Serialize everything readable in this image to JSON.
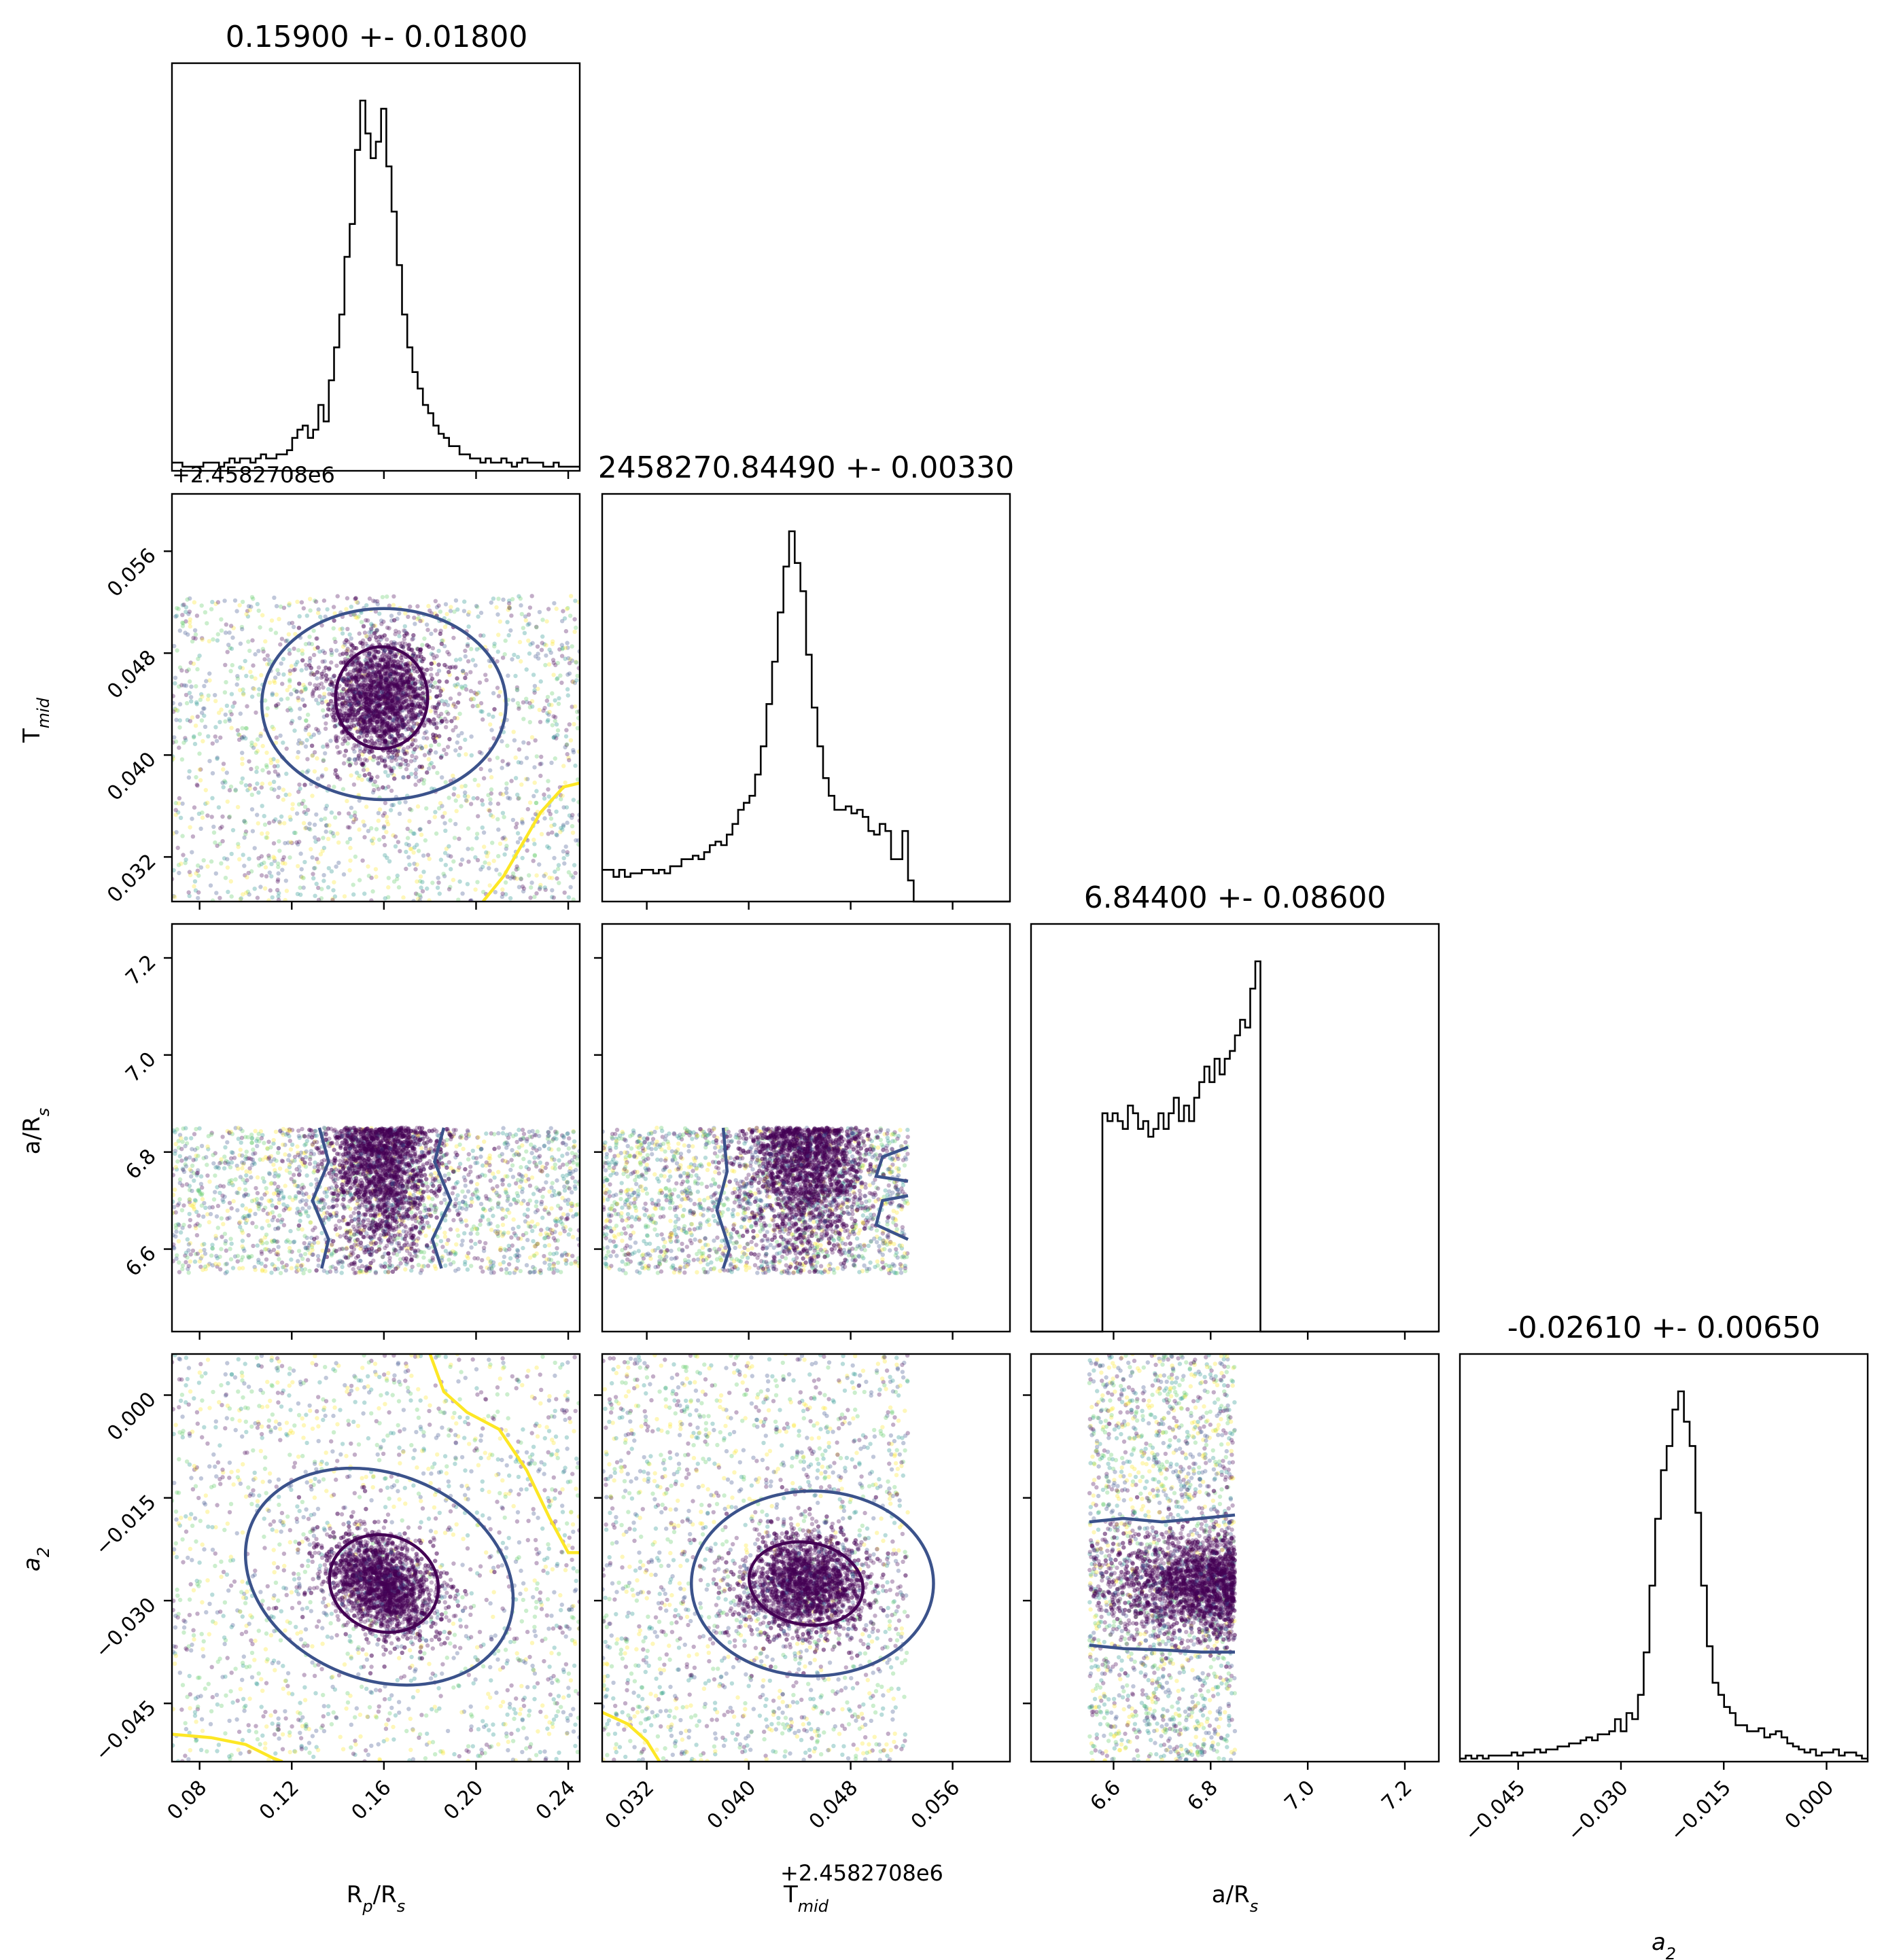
{
  "chart_data": {
    "type": "corner",
    "parameters": [
      {
        "key": "rprs",
        "label_main": "R",
        "label_sub": "p",
        "label_tail": "/R",
        "label_sub2": "s",
        "range": [
          0.068,
          0.245
        ]
      },
      {
        "key": "tmid",
        "label_main": "T",
        "label_sub": "mid",
        "label_tail": "",
        "label_sub2": "",
        "range": [
          0.0285,
          0.0605
        ],
        "offset_text": "+2.4582708e6"
      },
      {
        "key": "ars",
        "label_main": "a/R",
        "label_sub": "s",
        "label_tail": "",
        "label_sub2": "",
        "range": [
          6.43,
          7.27
        ]
      },
      {
        "key": "a2",
        "label_main": "a",
        "label_sub": "2",
        "label_tail": "",
        "label_sub2": "",
        "label_italic": true,
        "range": [
          -0.0535,
          0.006
        ]
      }
    ],
    "titles": [
      "0.15900 +- 0.01800",
      "2458270.84490 +- 0.00330",
      "6.84400 +- 0.08600",
      "-0.02610 +- 0.00650"
    ],
    "ticks": {
      "rprs": {
        "values": [
          0.08,
          0.12,
          0.16,
          0.2,
          0.24
        ],
        "labels": [
          "0.08",
          "0.12",
          "0.16",
          "0.20",
          "0.24"
        ]
      },
      "tmid": {
        "values": [
          0.032,
          0.04,
          0.048,
          0.056
        ],
        "labels": [
          "0.032",
          "0.040",
          "0.048",
          "0.056"
        ]
      },
      "ars": {
        "values": [
          6.6,
          6.8,
          7.0,
          7.2
        ],
        "labels": [
          "6.6",
          "6.8",
          "7.0",
          "7.2"
        ]
      },
      "a2": {
        "values": [
          -0.045,
          -0.03,
          -0.015,
          0.0
        ],
        "labels": [
          "−0.045",
          "−0.030",
          "−0.015",
          "0.000"
        ]
      }
    },
    "priors": {
      "rprs": [
        0.068,
        0.245
      ],
      "tmid": [
        0.0285,
        0.0525
      ],
      "ars": [
        6.55,
        6.85
      ],
      "a2": [
        -0.0535,
        0.006
      ]
    },
    "posterior": {
      "rprs": {
        "mean": 0.159,
        "sigma": 0.009
      },
      "tmid": {
        "mean": 0.0445,
        "sigma": 0.0018
      },
      "ars": {
        "mean": 6.8,
        "sigma": 0.08
      },
      "a2": {
        "mean": -0.0275,
        "sigma": 0.0028
      },
      "corr_rprs_a2": -0.35
    },
    "histograms": {
      "rprs": [
        2,
        2,
        1,
        1,
        1,
        1,
        2,
        2,
        2,
        1,
        2,
        3,
        2,
        3,
        3,
        2,
        3,
        4,
        3,
        3,
        4,
        4,
        5,
        8,
        10,
        11,
        8,
        10,
        16,
        12,
        22,
        30,
        38,
        52,
        60,
        78,
        90,
        82,
        76,
        80,
        88,
        74,
        63,
        50,
        38,
        30,
        24,
        20,
        16,
        14,
        11,
        9,
        8,
        6,
        6,
        4,
        4,
        3,
        3,
        2,
        3,
        2,
        2,
        3,
        2,
        1,
        2,
        3,
        2,
        2,
        2,
        1,
        1,
        2,
        1,
        1,
        1,
        1
      ],
      "tmid": [
        9,
        9,
        7,
        9,
        7,
        8,
        8,
        9,
        9,
        8,
        9,
        8,
        10,
        10,
        12,
        12,
        13,
        12,
        14,
        16,
        17,
        16,
        19,
        22,
        26,
        28,
        30,
        36,
        44,
        56,
        68,
        82,
        95,
        105,
        96,
        88,
        70,
        55,
        44,
        35,
        30,
        26,
        26,
        27,
        25,
        26,
        24,
        20,
        19,
        22,
        20,
        12,
        12,
        20,
        6,
        0,
        0,
        0,
        0,
        0,
        0,
        0,
        0,
        0,
        0,
        0,
        0,
        0,
        0,
        0,
        0,
        0
      ],
      "ars": [
        0,
        0,
        0,
        0,
        0,
        0,
        0,
        0,
        0,
        0,
        0,
        0,
        0,
        0,
        56,
        54,
        56,
        54,
        52,
        58,
        56,
        52,
        54,
        50,
        52,
        56,
        52,
        56,
        60,
        54,
        58,
        54,
        60,
        64,
        68,
        64,
        70,
        66,
        70,
        72,
        76,
        80,
        78,
        88,
        95,
        0,
        0,
        0,
        0,
        0,
        0,
        0,
        0,
        0,
        0,
        0,
        0,
        0,
        0,
        0,
        0,
        0,
        0,
        0,
        0,
        0,
        0,
        0,
        0,
        0,
        0,
        0,
        0,
        0,
        0,
        0,
        0,
        0,
        0,
        0
      ],
      "a2": [
        1,
        2,
        1,
        2,
        1,
        2,
        2,
        2,
        2,
        3,
        2,
        3,
        3,
        4,
        3,
        4,
        4,
        5,
        5,
        6,
        6,
        7,
        8,
        7,
        9,
        9,
        10,
        14,
        10,
        16,
        14,
        22,
        36,
        58,
        80,
        96,
        104,
        116,
        122,
        112,
        104,
        82,
        58,
        38,
        26,
        22,
        18,
        16,
        12,
        12,
        10,
        10,
        11,
        8,
        9,
        10,
        8,
        6,
        5,
        4,
        3,
        4,
        2,
        3,
        3,
        4,
        2,
        3,
        3,
        2,
        1
      ]
    },
    "contour_levels": [
      "1-sigma",
      "2-sigma",
      "outer"
    ],
    "colormap": [
      "#440154",
      "#3b528b",
      "#21918c",
      "#5ec962",
      "#fde725"
    ],
    "contour_colors": {
      "inner": "#440154",
      "middle": "#3b528b",
      "outer": "#fde725"
    }
  }
}
